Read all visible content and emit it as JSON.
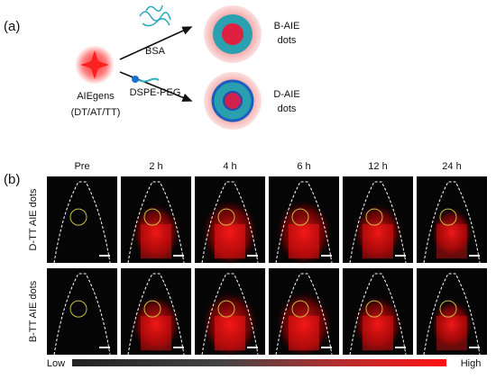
{
  "panel_a": {
    "label": "(a)",
    "aiegens": [
      "AIEgens",
      "(DT/AT/TT)"
    ],
    "bsa": "BSA",
    "dspe": "DSPE-PEG",
    "b_dots": [
      "B-AIE",
      "dots"
    ],
    "d_dots": [
      "D-AIE",
      "dots"
    ]
  },
  "panel_b": {
    "label": "(b)",
    "columns": [
      "Pre",
      "2 h",
      "4 h",
      "6 h",
      "12 h",
      "24 h"
    ],
    "rows": [
      "D-TT AIE dots",
      "B-TT AIE dots"
    ],
    "scale": {
      "low": "Low",
      "high": "High"
    }
  }
}
